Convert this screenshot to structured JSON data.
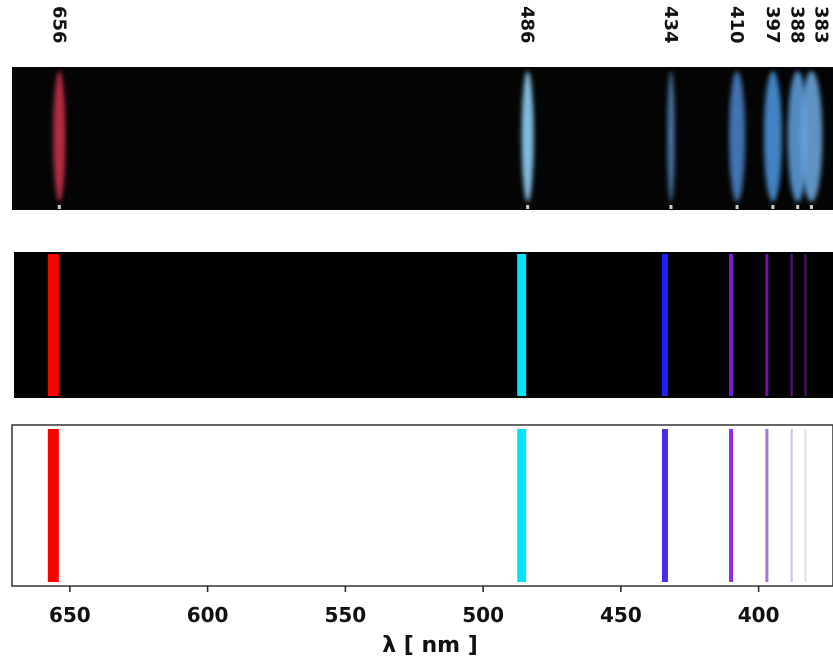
{
  "chart_data": {
    "type": "spectrum",
    "x": [
      656,
      486,
      434,
      410,
      397,
      388,
      383
    ],
    "xlim": [
      671,
      373
    ],
    "xticks": [
      650,
      600,
      550,
      500,
      450,
      400
    ],
    "xlabel": "λ [ nm ]",
    "panels": [
      {
        "type": "photo",
        "background": "#050505",
        "colors": [
          "#c8324a",
          "#8fd0f5",
          "#4f86c0",
          "#4a7fc4",
          "#4a90d8",
          "#5a9ad8",
          "#6aa2d8"
        ]
      },
      {
        "type": "emission",
        "background": "#000000",
        "colors": [
          "#ff0000",
          "#00e5ff",
          "#1e1eff",
          "#7a1fd8",
          "#7010b0",
          "#640c98",
          "#560a80"
        ]
      },
      {
        "type": "emission",
        "background": "#ffffff",
        "colors": [
          "#ff0000",
          "#00e5ff",
          "#4a2ee6",
          "#8a2be2",
          "#a577d8",
          "#cdbcdf",
          "#e2dbea"
        ]
      }
    ]
  }
}
